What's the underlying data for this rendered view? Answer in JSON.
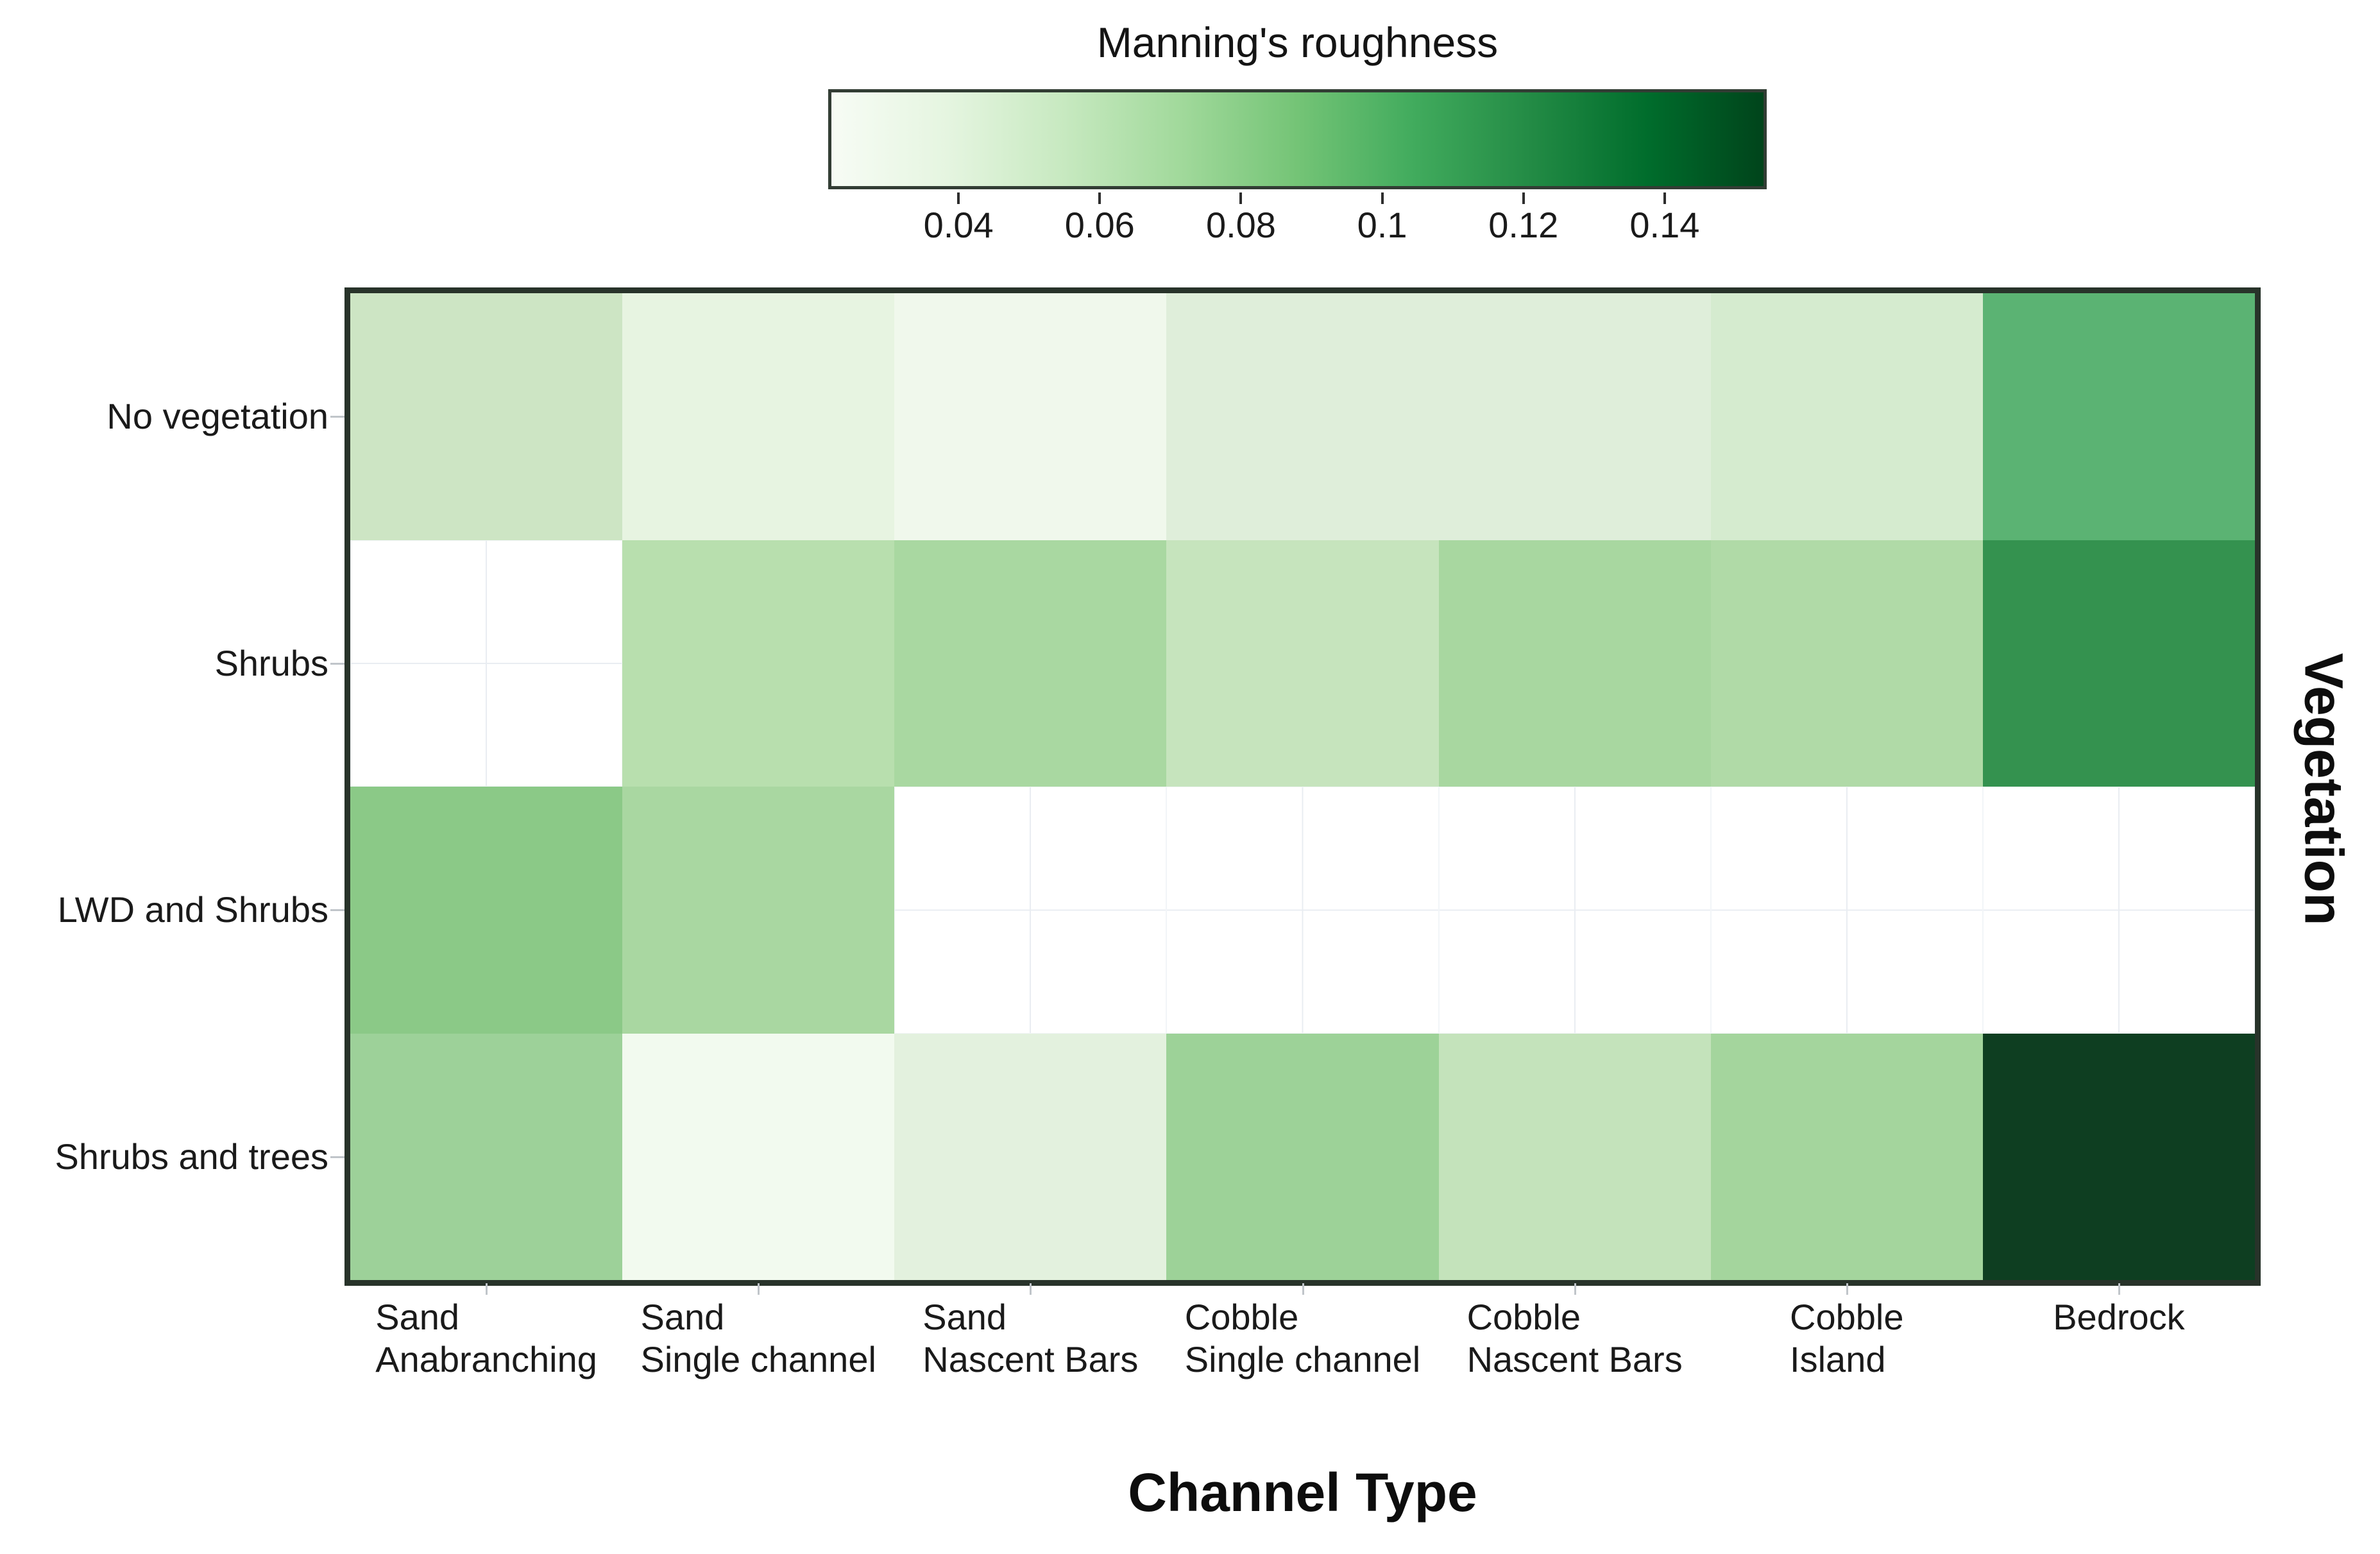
{
  "figure": {
    "background_color": "#ffffff",
    "plot_border_color": "#28332a",
    "na_grid_line_color": "#e9edf2",
    "tick_mark_color": "#c0c5ca",
    "x_axis_title": "Channel Type",
    "y_axis_title": "Vegetation"
  },
  "colorbar": {
    "title": "Manning's roughness",
    "vmin": 0.022,
    "vmax": 0.154,
    "tick_values": [
      0.04,
      0.06,
      0.08,
      0.1,
      0.12,
      0.14
    ],
    "tick_labels": [
      "0.04",
      "0.06",
      "0.08",
      "0.1",
      "0.12",
      "0.14"
    ],
    "gradient_stops": [
      "#f7fcf5",
      "#e5f5e0",
      "#c7e9c0",
      "#a1d99b",
      "#74c476",
      "#41ab5d",
      "#238b45",
      "#006d2c",
      "#00441b"
    ]
  },
  "chart_data": {
    "type": "heatmap",
    "title": "Manning's roughness",
    "xlabel": "Channel Type",
    "ylabel": "Vegetation",
    "colormap": "Greens",
    "color_range": [
      0.022,
      0.154
    ],
    "rows": [
      "No vegetation",
      "Shrubs",
      "LWD and Shrubs",
      "Shrubs and trees"
    ],
    "columns": [
      "Sand Anabranching",
      "Sand Single channel",
      "Sand Nascent Bars",
      "Cobble Single channel",
      "Cobble Nascent Bars",
      "Cobble Island",
      "Bedrock"
    ],
    "column_label_lines": [
      [
        "Sand",
        "Anabranching"
      ],
      [
        "Sand",
        "Single channel"
      ],
      [
        "Sand",
        "Nascent Bars"
      ],
      [
        "Cobble",
        "Single channel"
      ],
      [
        "Cobble",
        "Nascent Bars"
      ],
      [
        "Cobble",
        "Island"
      ],
      [
        "Bedrock"
      ]
    ],
    "values": [
      [
        0.051,
        0.037,
        0.029,
        0.043,
        0.043,
        0.048,
        0.097
      ],
      [
        null,
        0.064,
        0.072,
        0.056,
        0.074,
        0.068,
        0.116
      ],
      [
        0.083,
        0.072,
        null,
        null,
        null,
        null,
        null
      ],
      [
        0.079,
        0.027,
        0.04,
        0.077,
        0.057,
        0.075,
        0.151
      ]
    ],
    "cell_colors": [
      [
        "#cde5c4",
        "#e7f4e1",
        "#f0f8ec",
        "#dfeeda",
        "#dfeeda",
        "#d5ebcf",
        "#5bb373"
      ],
      [
        null,
        "#b8dfae",
        "#a9d8a1",
        "#c6e4bd",
        "#a8d7a0",
        "#b0daa7",
        "#34924f"
      ],
      [
        "#8bc987",
        "#a9d7a1",
        null,
        null,
        null,
        null,
        null
      ],
      [
        "#9dd199",
        "#f2faef",
        "#e3f1de",
        "#9dd298",
        "#c4e3bb",
        "#a4d59d",
        "#0e3e21"
      ]
    ],
    "na_color": "#ffffff",
    "legend_position": "top"
  }
}
